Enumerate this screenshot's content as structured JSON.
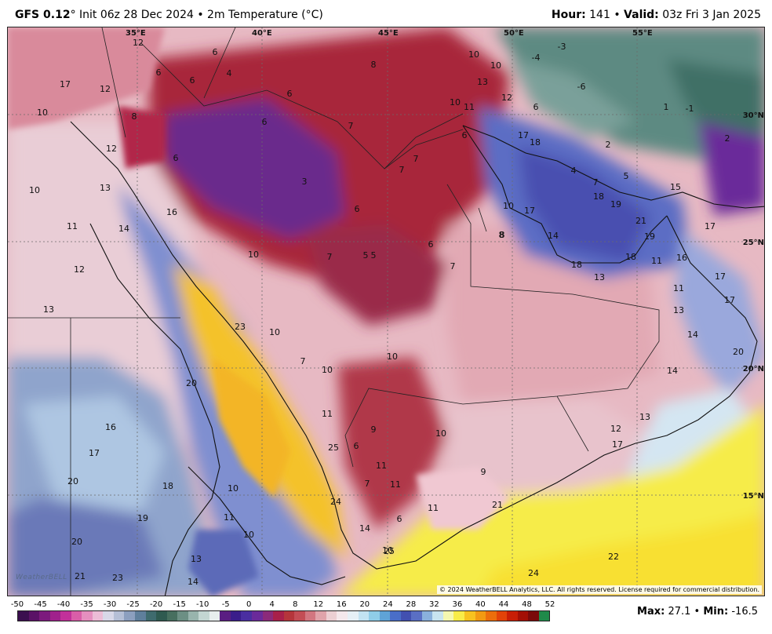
{
  "header": {
    "model": "GFS 0.12",
    "init": "° Init 06z 28 Dec 2024 • 2m Temperature (°C)",
    "hour_label": "Hour:",
    "hour_value": " 141 • ",
    "valid_label": "Valid:",
    "valid_value": " 03z Fri 3 Jan 2025"
  },
  "map": {
    "longitude_labels": [
      "35°E",
      "40°E",
      "45°E",
      "50°E",
      "55°E"
    ],
    "latitude_labels": [
      "30°N",
      "25°N",
      "20°N",
      "15°N"
    ],
    "temperature_values": [
      {
        "v": "12"
      },
      {
        "v": "6"
      },
      {
        "v": "4"
      },
      {
        "v": "6"
      },
      {
        "v": "6"
      },
      {
        "v": "8"
      },
      {
        "v": "10"
      },
      {
        "v": "10"
      },
      {
        "v": "-4"
      },
      {
        "v": "-3"
      },
      {
        "v": "12"
      },
      {
        "v": "17"
      },
      {
        "v": "10"
      },
      {
        "v": "13"
      },
      {
        "v": "-6"
      },
      {
        "v": "12"
      },
      {
        "v": "6"
      },
      {
        "v": "6"
      },
      {
        "v": "6"
      },
      {
        "v": "7"
      },
      {
        "v": "8"
      },
      {
        "v": "10"
      },
      {
        "v": "11"
      },
      {
        "v": "6"
      },
      {
        "v": "1"
      },
      {
        "v": "-1"
      },
      {
        "v": "12"
      },
      {
        "v": "17"
      },
      {
        "v": "18"
      },
      {
        "v": "2"
      },
      {
        "v": "2"
      },
      {
        "v": "6"
      },
      {
        "v": "7"
      },
      {
        "v": "7"
      },
      {
        "v": "4"
      },
      {
        "v": "10"
      },
      {
        "v": "13"
      },
      {
        "v": "3"
      },
      {
        "v": "8"
      },
      {
        "v": "5"
      },
      {
        "v": "7"
      },
      {
        "v": "15"
      },
      {
        "v": "16"
      },
      {
        "v": "6"
      },
      {
        "v": "10"
      },
      {
        "v": "17"
      },
      {
        "v": "18"
      },
      {
        "v": "19"
      },
      {
        "v": "11"
      },
      {
        "v": "14"
      },
      {
        "v": "21"
      },
      {
        "v": "17"
      },
      {
        "v": "8"
      },
      {
        "v": "6"
      },
      {
        "v": "19"
      },
      {
        "v": "12"
      },
      {
        "v": "10"
      },
      {
        "v": "7"
      },
      {
        "v": "5"
      },
      {
        "v": "5"
      },
      {
        "v": "7"
      },
      {
        "v": "14"
      },
      {
        "v": "18"
      },
      {
        "v": "16"
      },
      {
        "v": "18"
      },
      {
        "v": "11"
      },
      {
        "v": "13"
      },
      {
        "v": "11"
      },
      {
        "v": "17"
      },
      {
        "v": "17"
      },
      {
        "v": "13"
      },
      {
        "v": "23"
      },
      {
        "v": "10"
      },
      {
        "v": "13"
      },
      {
        "v": "14"
      },
      {
        "v": "7"
      },
      {
        "v": "10"
      },
      {
        "v": "10"
      },
      {
        "v": "20"
      },
      {
        "v": "14"
      },
      {
        "v": "20"
      },
      {
        "v": "16"
      },
      {
        "v": "11"
      },
      {
        "v": "13"
      },
      {
        "v": "9"
      },
      {
        "v": "10"
      },
      {
        "v": "12"
      },
      {
        "v": "17"
      },
      {
        "v": "17"
      },
      {
        "v": "25"
      },
      {
        "v": "6"
      },
      {
        "v": "11"
      },
      {
        "v": "9"
      },
      {
        "v": "20"
      },
      {
        "v": "18"
      },
      {
        "v": "7"
      },
      {
        "v": "11"
      },
      {
        "v": "10"
      },
      {
        "v": "24"
      },
      {
        "v": "21"
      },
      {
        "v": "19"
      },
      {
        "v": "11"
      },
      {
        "v": "6"
      },
      {
        "v": "11"
      },
      {
        "v": "20"
      },
      {
        "v": "10"
      },
      {
        "v": "14"
      },
      {
        "v": "13"
      },
      {
        "v": "25"
      },
      {
        "v": "22"
      },
      {
        "v": "21"
      },
      {
        "v": "23"
      },
      {
        "v": "14"
      },
      {
        "v": "24"
      },
      {
        "v": "10"
      }
    ],
    "copyright": "© 2024 WeatherBELL Analytics, LLC. All rights reserved. License required for commercial distribution.",
    "logo": "WeatherBELL"
  },
  "colorbar": {
    "labels": [
      "-50",
      "-45",
      "-40",
      "-35",
      "-30",
      "-25",
      "-20",
      "-15",
      "-10",
      "-5",
      "0",
      "4",
      "8",
      "12",
      "16",
      "20",
      "24",
      "28",
      "32",
      "36",
      "40",
      "44",
      "48",
      "52"
    ],
    "colors": [
      "#3b0f4f",
      "#5a1266",
      "#7c1a7d",
      "#a0218c",
      "#c2319a",
      "#d95ea8",
      "#e58fbf",
      "#ecbcd6",
      "#d8d8e8",
      "#b5bfd6",
      "#8c9fbf",
      "#5f7f9c",
      "#3f6b6e",
      "#2f5a50",
      "#476f5f",
      "#6c8f84",
      "#98b4ad",
      "#c3d6d2",
      "#e8eeee",
      "#5a1e82",
      "#3a1d8a",
      "#4a2ea0",
      "#6a2a9a",
      "#8b2a7a",
      "#a8204a",
      "#b5353b",
      "#c34d55",
      "#d27680",
      "#e0a3aa",
      "#eccfd3",
      "#f4e8ec",
      "#e6f0f6",
      "#c2e3f2",
      "#8fcde8",
      "#5fa3d6",
      "#4a6ec8",
      "#4250b0",
      "#5a6fc4",
      "#8ab0dc",
      "#c8e4f0",
      "#f4f7b0",
      "#f8ec48",
      "#f7c21f",
      "#f29a12",
      "#ec6e0c",
      "#e24309",
      "#c81e06",
      "#a30f05",
      "#7a0a0a",
      "#1f8a4a"
    ]
  },
  "stats": {
    "max_label": "Max:",
    "max_value": " 27.1 • ",
    "min_label": "Min:",
    "min_value": " -16.5"
  }
}
